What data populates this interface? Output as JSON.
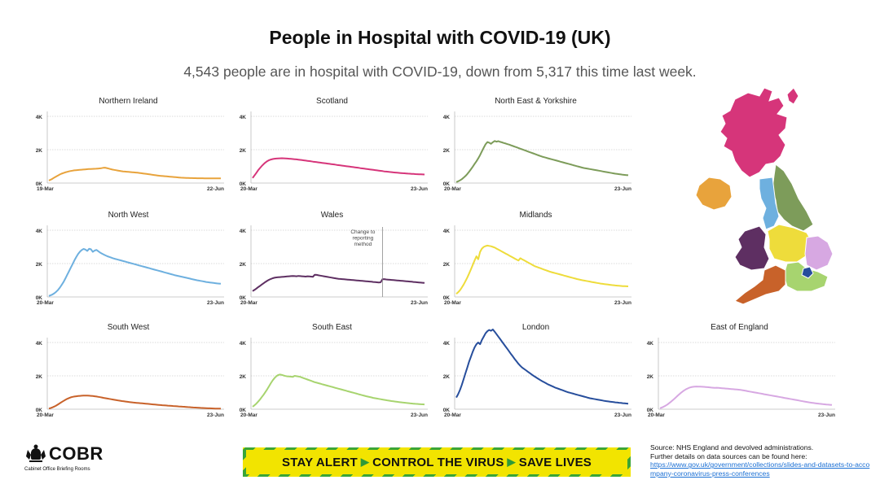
{
  "title": "People in Hospital with COVID-19 (UK)",
  "subtitle": "4,543 people are in hospital with COVID-19, down from 5,317 this time last week.",
  "footer": {
    "logo_text": "COBR",
    "logo_subtitle": "Cabinet Office Briefing Rooms",
    "banner": [
      "STAY ALERT",
      "CONTROL THE VIRUS",
      "SAVE LIVES"
    ],
    "source_line1": "Source: NHS England and devolved administrations.",
    "source_line2": "Further details on data sources can be found here:",
    "source_link": "https://www.gov.uk/government/collections/slides-and-datasets-to-accompany-coronavirus-press-conferences"
  },
  "chart_data": [
    {
      "type": "line",
      "title": "Northern Ireland",
      "color": "#e8a33c",
      "x_start": "19-Mar",
      "x_end": "22-Jun",
      "ylim": [
        0,
        4000
      ],
      "yticks": [
        "0K",
        "2K",
        "4K"
      ],
      "values": [
        150,
        200,
        260,
        330,
        390,
        450,
        510,
        560,
        600,
        640,
        670,
        700,
        720,
        740,
        760,
        770,
        780,
        790,
        800,
        810,
        820,
        830,
        840,
        845,
        850,
        855,
        860,
        870,
        880,
        895,
        910,
        920,
        900,
        870,
        840,
        810,
        790,
        770,
        750,
        730,
        710,
        700,
        690,
        680,
        670,
        660,
        650,
        640,
        630,
        620,
        605,
        590,
        575,
        560,
        545,
        530,
        515,
        500,
        485,
        470,
        455,
        440,
        430,
        420,
        410,
        400,
        390,
        380,
        370,
        360,
        350,
        340,
        330,
        320,
        315,
        310,
        305,
        300,
        298,
        296,
        294,
        292,
        290,
        288,
        287,
        286,
        285,
        284,
        283,
        282,
        281,
        280,
        280,
        280,
        280,
        280
      ]
    },
    {
      "type": "line",
      "title": "Scotland",
      "color": "#d6357a",
      "x_start": "20-Mar",
      "x_end": "23-Jun",
      "ylim": [
        0,
        4000
      ],
      "yticks": [
        "0K",
        "2K",
        "4K"
      ],
      "values": [
        300,
        450,
        600,
        760,
        900,
        1020,
        1130,
        1230,
        1310,
        1370,
        1410,
        1440,
        1460,
        1470,
        1480,
        1485,
        1490,
        1485,
        1480,
        1470,
        1460,
        1450,
        1440,
        1430,
        1420,
        1405,
        1390,
        1375,
        1360,
        1345,
        1330,
        1315,
        1300,
        1285,
        1270,
        1255,
        1240,
        1225,
        1210,
        1195,
        1180,
        1165,
        1150,
        1135,
        1120,
        1105,
        1090,
        1075,
        1060,
        1045,
        1030,
        1015,
        1000,
        985,
        970,
        955,
        940,
        925,
        910,
        895,
        880,
        865,
        850,
        835,
        820,
        805,
        790,
        775,
        760,
        745,
        730,
        715,
        700,
        688,
        676,
        664,
        652,
        640,
        630,
        620,
        610,
        600,
        592,
        584,
        576,
        568,
        560,
        552,
        545,
        538,
        532,
        526,
        520,
        515,
        510
      ]
    },
    {
      "type": "line",
      "title": "North East & Yorkshire",
      "color": "#7d9c5a",
      "x_start": "20-Mar",
      "x_end": "23-Jun",
      "ylim": [
        0,
        4000
      ],
      "yticks": [
        "0K",
        "2K",
        "4K"
      ],
      "values": [
        60,
        100,
        160,
        230,
        320,
        420,
        540,
        680,
        830,
        980,
        1140,
        1300,
        1480,
        1680,
        1900,
        2120,
        2320,
        2460,
        2420,
        2350,
        2450,
        2520,
        2480,
        2510,
        2470,
        2440,
        2400,
        2370,
        2330,
        2300,
        2260,
        2220,
        2180,
        2140,
        2100,
        2060,
        2020,
        1980,
        1940,
        1900,
        1860,
        1820,
        1780,
        1740,
        1700,
        1660,
        1620,
        1580,
        1550,
        1520,
        1490,
        1460,
        1430,
        1400,
        1370,
        1340,
        1310,
        1280,
        1250,
        1220,
        1190,
        1160,
        1130,
        1100,
        1070,
        1040,
        1010,
        980,
        950,
        920,
        900,
        880,
        860,
        840,
        820,
        800,
        780,
        760,
        740,
        720,
        700,
        680,
        660,
        640,
        620,
        600,
        580,
        560,
        545,
        530,
        515,
        500,
        490,
        480,
        470
      ]
    },
    {
      "type": "line",
      "title": "North West",
      "color": "#6eb0df",
      "x_start": "20-Mar",
      "x_end": "23-Jun",
      "ylim": [
        0,
        4000
      ],
      "yticks": [
        "0K",
        "2K",
        "4K"
      ],
      "values": [
        60,
        100,
        150,
        220,
        310,
        420,
        560,
        720,
        900,
        1100,
        1320,
        1540,
        1760,
        1980,
        2200,
        2400,
        2580,
        2720,
        2820,
        2880,
        2840,
        2760,
        2890,
        2860,
        2700,
        2780,
        2820,
        2740,
        2660,
        2600,
        2540,
        2490,
        2440,
        2400,
        2360,
        2320,
        2290,
        2260,
        2230,
        2200,
        2170,
        2140,
        2110,
        2080,
        2050,
        2020,
        1990,
        1960,
        1930,
        1900,
        1870,
        1840,
        1810,
        1780,
        1750,
        1720,
        1690,
        1660,
        1630,
        1600,
        1570,
        1540,
        1510,
        1480,
        1450,
        1420,
        1390,
        1360,
        1330,
        1300,
        1275,
        1250,
        1225,
        1200,
        1175,
        1150,
        1125,
        1100,
        1075,
        1050,
        1025,
        1000,
        980,
        960,
        940,
        920,
        900,
        885,
        870,
        855,
        840,
        825,
        810,
        800,
        790
      ]
    },
    {
      "type": "line",
      "title": "Wales",
      "color": "#5e2f62",
      "x_start": "20-Mar",
      "x_end": "23-Jun",
      "ylim": [
        0,
        4000
      ],
      "yticks": [
        "0K",
        "2K",
        "4K"
      ],
      "annotation": "Change to reporting method",
      "annotation_index": 71,
      "values": [
        350,
        420,
        500,
        580,
        660,
        740,
        820,
        900,
        970,
        1030,
        1080,
        1120,
        1150,
        1170,
        1180,
        1190,
        1200,
        1210,
        1220,
        1230,
        1240,
        1250,
        1260,
        1250,
        1240,
        1260,
        1250,
        1240,
        1230,
        1220,
        1240,
        1230,
        1220,
        1210,
        1330,
        1320,
        1300,
        1280,
        1260,
        1240,
        1220,
        1200,
        1180,
        1160,
        1140,
        1120,
        1100,
        1090,
        1080,
        1070,
        1060,
        1050,
        1040,
        1030,
        1020,
        1010,
        1000,
        990,
        980,
        970,
        960,
        950,
        940,
        930,
        920,
        910,
        900,
        890,
        880,
        870,
        880,
        1060,
        1070,
        1050,
        1040,
        1030,
        1020,
        1010,
        1000,
        990,
        980,
        970,
        960,
        950,
        940,
        930,
        920,
        910,
        900,
        890,
        880,
        870,
        860,
        850,
        840
      ]
    },
    {
      "type": "line",
      "title": "Midlands",
      "color": "#eedc3b",
      "x_start": "20-Mar",
      "x_end": "23-Jun",
      "ylim": [
        0,
        4000
      ],
      "yticks": [
        "0K",
        "2K",
        "4K"
      ],
      "values": [
        180,
        280,
        400,
        560,
        740,
        940,
        1160,
        1400,
        1660,
        1920,
        2180,
        2440,
        2260,
        2700,
        2900,
        3000,
        3050,
        3080,
        3060,
        3040,
        3000,
        2960,
        2900,
        2840,
        2780,
        2720,
        2660,
        2600,
        2540,
        2480,
        2420,
        2360,
        2300,
        2240,
        2180,
        2320,
        2260,
        2200,
        2140,
        2080,
        2020,
        1960,
        1900,
        1840,
        1800,
        1760,
        1720,
        1680,
        1640,
        1600,
        1560,
        1520,
        1490,
        1460,
        1430,
        1400,
        1370,
        1340,
        1310,
        1280,
        1250,
        1220,
        1190,
        1160,
        1130,
        1100,
        1075,
        1050,
        1025,
        1000,
        980,
        960,
        940,
        920,
        900,
        880,
        860,
        840,
        820,
        800,
        785,
        770,
        755,
        740,
        725,
        710,
        700,
        690,
        680,
        670,
        660,
        650,
        645,
        640,
        635
      ]
    },
    {
      "type": "line",
      "title": "South West",
      "color": "#c8622a",
      "x_start": "20-Mar",
      "x_end": "23-Jun",
      "ylim": [
        0,
        4000
      ],
      "yticks": [
        "0K",
        "2K",
        "4K"
      ],
      "values": [
        40,
        70,
        110,
        160,
        220,
        290,
        360,
        430,
        500,
        560,
        620,
        670,
        710,
        740,
        760,
        775,
        790,
        800,
        810,
        815,
        820,
        815,
        810,
        800,
        790,
        775,
        760,
        740,
        720,
        700,
        680,
        660,
        640,
        620,
        600,
        580,
        560,
        540,
        520,
        505,
        490,
        475,
        460,
        445,
        430,
        415,
        400,
        390,
        380,
        370,
        360,
        350,
        340,
        330,
        320,
        310,
        300,
        290,
        280,
        270,
        260,
        250,
        240,
        232,
        224,
        216,
        208,
        200,
        192,
        184,
        176,
        168,
        160,
        152,
        144,
        136,
        128,
        120,
        112,
        104,
        98,
        92,
        86,
        80,
        74,
        68,
        62,
        56,
        52,
        48,
        44,
        40,
        37,
        34,
        32
      ]
    },
    {
      "type": "line",
      "title": "South East",
      "color": "#a7d46f",
      "x_start": "20-Mar",
      "x_end": "23-Jun",
      "ylim": [
        0,
        4000
      ],
      "yticks": [
        "0K",
        "2K",
        "4K"
      ],
      "values": [
        150,
        230,
        330,
        450,
        580,
        720,
        870,
        1030,
        1200,
        1380,
        1560,
        1730,
        1870,
        1980,
        2050,
        2080,
        2060,
        2020,
        1990,
        1970,
        1960,
        1950,
        1940,
        2000,
        1980,
        1960,
        1940,
        1900,
        1860,
        1820,
        1780,
        1740,
        1700,
        1660,
        1620,
        1590,
        1560,
        1530,
        1500,
        1470,
        1440,
        1410,
        1380,
        1350,
        1320,
        1290,
        1260,
        1230,
        1200,
        1170,
        1140,
        1110,
        1080,
        1050,
        1020,
        990,
        960,
        930,
        900,
        870,
        840,
        810,
        780,
        755,
        730,
        705,
        680,
        660,
        640,
        620,
        600,
        580,
        560,
        540,
        520,
        505,
        490,
        475,
        460,
        445,
        430,
        415,
        400,
        388,
        376,
        364,
        352,
        340,
        332,
        324,
        316,
        308,
        300,
        294,
        288
      ]
    },
    {
      "type": "line",
      "title": "London",
      "color": "#274e9c",
      "x_start": "20-Mar",
      "x_end": "23-Jun",
      "ylim": [
        0,
        4000
      ],
      "yticks": [
        "0K",
        "2K",
        "4K"
      ],
      "values": [
        700,
        900,
        1150,
        1450,
        1800,
        2150,
        2500,
        2850,
        3150,
        3450,
        3700,
        3900,
        4000,
        3900,
        4150,
        4350,
        4550,
        4680,
        4750,
        4700,
        4780,
        4650,
        4500,
        4350,
        4200,
        4050,
        3900,
        3750,
        3600,
        3450,
        3300,
        3150,
        3000,
        2860,
        2720,
        2600,
        2500,
        2420,
        2340,
        2260,
        2180,
        2100,
        2020,
        1950,
        1880,
        1810,
        1740,
        1680,
        1620,
        1560,
        1500,
        1450,
        1400,
        1350,
        1300,
        1260,
        1220,
        1180,
        1140,
        1100,
        1060,
        1020,
        990,
        960,
        930,
        900,
        870,
        840,
        810,
        780,
        750,
        720,
        690,
        660,
        640,
        620,
        600,
        580,
        560,
        540,
        520,
        500,
        485,
        470,
        455,
        440,
        425,
        410,
        398,
        386,
        374,
        362,
        350,
        340,
        330
      ]
    },
    {
      "type": "line",
      "title": "East of England",
      "color": "#d7a8e2",
      "x_start": "20-Mar",
      "x_end": "23-Jun",
      "ylim": [
        0,
        4000
      ],
      "yticks": [
        "0K",
        "2K",
        "4K"
      ],
      "values": [
        60,
        100,
        150,
        210,
        280,
        360,
        450,
        540,
        640,
        740,
        840,
        940,
        1030,
        1110,
        1180,
        1240,
        1290,
        1320,
        1340,
        1350,
        1360,
        1355,
        1350,
        1345,
        1340,
        1330,
        1320,
        1310,
        1300,
        1290,
        1280,
        1290,
        1280,
        1270,
        1260,
        1250,
        1240,
        1230,
        1220,
        1210,
        1200,
        1190,
        1180,
        1170,
        1160,
        1140,
        1120,
        1100,
        1080,
        1060,
        1040,
        1020,
        1000,
        980,
        960,
        940,
        920,
        900,
        880,
        860,
        840,
        820,
        800,
        780,
        760,
        740,
        720,
        700,
        680,
        660,
        640,
        620,
        600,
        580,
        560,
        540,
        520,
        500,
        480,
        460,
        440,
        420,
        400,
        385,
        370,
        355,
        340,
        328,
        316,
        304,
        292,
        280,
        272,
        264,
        256
      ]
    }
  ],
  "map_regions": [
    {
      "name": "Scotland",
      "color": "#d6357a"
    },
    {
      "name": "Northern Ireland",
      "color": "#e8a33c"
    },
    {
      "name": "North East & Yorkshire",
      "color": "#7d9c5a"
    },
    {
      "name": "North West",
      "color": "#6eb0df"
    },
    {
      "name": "Wales",
      "color": "#5e2f62"
    },
    {
      "name": "Midlands",
      "color": "#eedc3b"
    },
    {
      "name": "East of England",
      "color": "#d7a8e2"
    },
    {
      "name": "London",
      "color": "#274e9c"
    },
    {
      "name": "South East",
      "color": "#a7d46f"
    },
    {
      "name": "South West",
      "color": "#c8622a"
    }
  ]
}
